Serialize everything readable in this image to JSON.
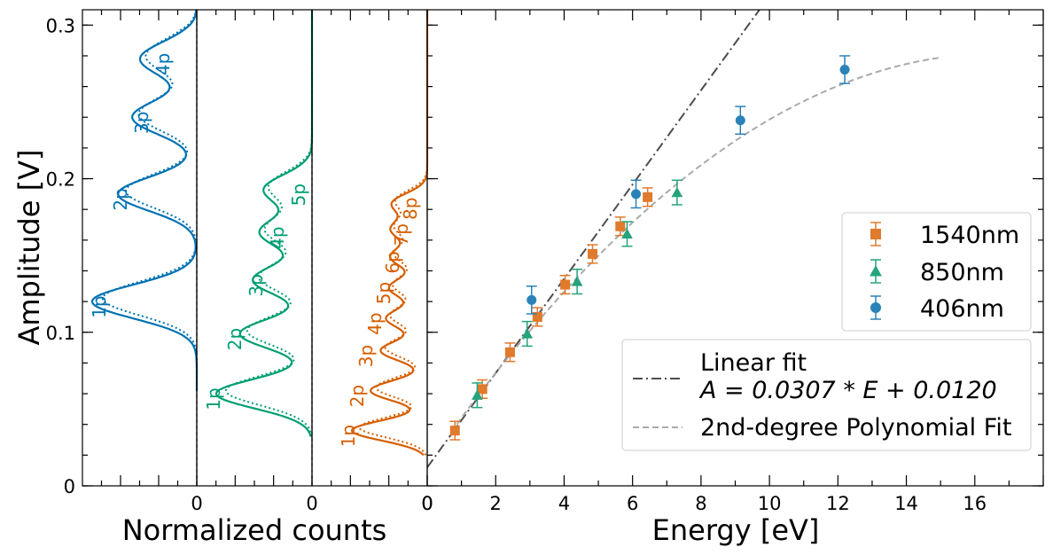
{
  "chart_data": {
    "type": "scatter",
    "ylabel": "Amplitude [V]",
    "ylim": [
      0,
      0.31
    ],
    "y_ticks": [
      0,
      0.1,
      0.2,
      0.3
    ],
    "y_tick_labels": [
      "0",
      "0.1",
      "0.2",
      "0.3"
    ],
    "panels": [
      {
        "id": "hist-1",
        "color": "#0072b2",
        "xlabel_shared": "Normalized counts",
        "x_tick_label": "0",
        "peak_labels": [
          {
            "label": "1p",
            "y": 0.12
          },
          {
            "label": "2p",
            "y": 0.19
          },
          {
            "label": "3p",
            "y": 0.24
          },
          {
            "label": "4p",
            "y": 0.278
          }
        ],
        "y_min": 0.062
      },
      {
        "id": "hist-2",
        "color": "#009e73",
        "x_tick_label": "0",
        "peak_labels": [
          {
            "label": "1p",
            "y": 0.06
          },
          {
            "label": "2p",
            "y": 0.099
          },
          {
            "label": "3p",
            "y": 0.134
          },
          {
            "label": "4p",
            "y": 0.165
          },
          {
            "label": "5p",
            "y": 0.193
          }
        ],
        "y_min": 0.032
      },
      {
        "id": "hist-3",
        "color": "#d55e00",
        "x_tick_label": "0",
        "peak_labels": [
          {
            "label": "1p",
            "y": 0.036
          },
          {
            "label": "2p",
            "y": 0.062
          },
          {
            "label": "3p",
            "y": 0.088
          },
          {
            "label": "4p",
            "y": 0.109
          },
          {
            "label": "5p",
            "y": 0.129
          },
          {
            "label": "6p",
            "y": 0.149
          },
          {
            "label": "7p",
            "y": 0.167
          },
          {
            "label": "8p",
            "y": 0.184
          }
        ],
        "y_min": 0.02
      }
    ],
    "energy_panel": {
      "xlabel": "Energy [eV]",
      "xlim": [
        0,
        18
      ],
      "x_ticks": [
        0,
        2,
        4,
        6,
        8,
        10,
        12,
        14,
        16
      ],
      "x_tick_labels": [
        "0",
        "2",
        "4",
        "6",
        "8",
        "10",
        "12",
        "14",
        "16"
      ],
      "series": [
        {
          "name": "1540nm",
          "marker": "square",
          "color": "#e07a2c",
          "points": [
            {
              "x": 0.81,
              "y": 0.036,
              "err": 0.006
            },
            {
              "x": 1.61,
              "y": 0.063,
              "err": 0.006
            },
            {
              "x": 2.42,
              "y": 0.087,
              "err": 0.006
            },
            {
              "x": 3.22,
              "y": 0.11,
              "err": 0.006
            },
            {
              "x": 4.03,
              "y": 0.131,
              "err": 0.006
            },
            {
              "x": 4.83,
              "y": 0.151,
              "err": 0.006
            },
            {
              "x": 5.64,
              "y": 0.169,
              "err": 0.006
            },
            {
              "x": 6.44,
              "y": 0.188,
              "err": 0.006
            }
          ]
        },
        {
          "name": "850nm",
          "marker": "triangle",
          "color": "#24a37c",
          "points": [
            {
              "x": 1.46,
              "y": 0.059,
              "err": 0.008
            },
            {
              "x": 2.92,
              "y": 0.099,
              "err": 0.008
            },
            {
              "x": 4.38,
              "y": 0.133,
              "err": 0.008
            },
            {
              "x": 5.84,
              "y": 0.164,
              "err": 0.008
            },
            {
              "x": 7.3,
              "y": 0.191,
              "err": 0.008
            }
          ]
        },
        {
          "name": "406nm",
          "marker": "circle",
          "color": "#2a82b8",
          "points": [
            {
              "x": 3.05,
              "y": 0.121,
              "err": 0.009
            },
            {
              "x": 6.1,
              "y": 0.19,
              "err": 0.009
            },
            {
              "x": 9.15,
              "y": 0.238,
              "err": 0.009
            },
            {
              "x": 12.2,
              "y": 0.271,
              "err": 0.009
            }
          ]
        }
      ],
      "fits": [
        {
          "name": "Linear fit",
          "equation": "A = 0.0307 * E + 0.0120",
          "style": "dashdot",
          "color": "#4d4d4d",
          "slope": 0.0307,
          "intercept": 0.012
        },
        {
          "name": "2nd-degree Polynomial Fit",
          "style": "dashed",
          "color": "#aaaaaa",
          "coefficients": [
            0.013,
            0.0322,
            -0.000965
          ]
        }
      ],
      "legend_series_placement": "right",
      "legend_fits_placement": "lower-right"
    }
  }
}
